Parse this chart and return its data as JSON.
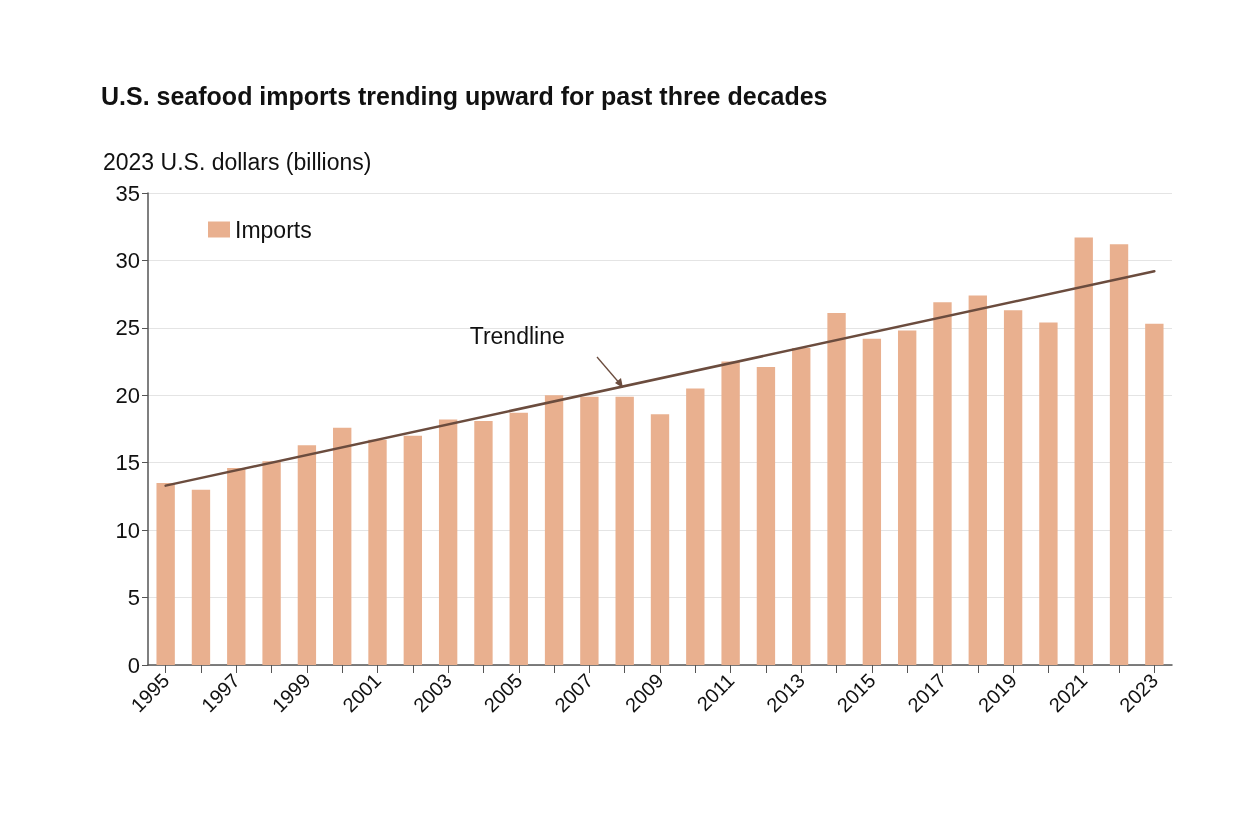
{
  "chart_data": {
    "type": "bar",
    "title": "U.S. seafood imports trending upward for past three decades",
    "ylabel": "2023 U.S. dollars (billions)",
    "categories": [
      "1995",
      null,
      "1997",
      null,
      "1999",
      null,
      "2001",
      null,
      "2003",
      null,
      "2005",
      null,
      "2007",
      null,
      "2009",
      null,
      "2011",
      null,
      "2013",
      null,
      "2015",
      null,
      "2017",
      null,
      "2019",
      null,
      "2021",
      null,
      "2023"
    ],
    "series": [
      {
        "name": "Imports",
        "color": "#e9b08f",
        "values": [
          13.5,
          13.0,
          14.6,
          15.1,
          16.3,
          17.6,
          16.7,
          17.0,
          18.2,
          18.1,
          18.7,
          20.0,
          19.9,
          19.9,
          18.6,
          20.5,
          22.5,
          22.1,
          23.5,
          26.1,
          24.2,
          24.8,
          26.9,
          27.4,
          26.3,
          25.4,
          31.7,
          31.2,
          25.3
        ]
      },
      {
        "type": "line",
        "color": "#6b4c3e",
        "values": [
          13.3,
          null,
          null,
          null,
          null,
          null,
          null,
          null,
          null,
          null,
          null,
          null,
          null,
          null,
          null,
          null,
          null,
          null,
          null,
          null,
          null,
          null,
          null,
          null,
          null,
          null,
          null,
          null,
          29.2
        ]
      }
    ],
    "annotations": [
      "Trendline"
    ],
    "ylim": [
      0,
      35
    ],
    "yticks": [
      0,
      5,
      10,
      15,
      20,
      25,
      30,
      35
    ],
    "grid": "y",
    "legend": "top left",
    "marker": "none"
  }
}
